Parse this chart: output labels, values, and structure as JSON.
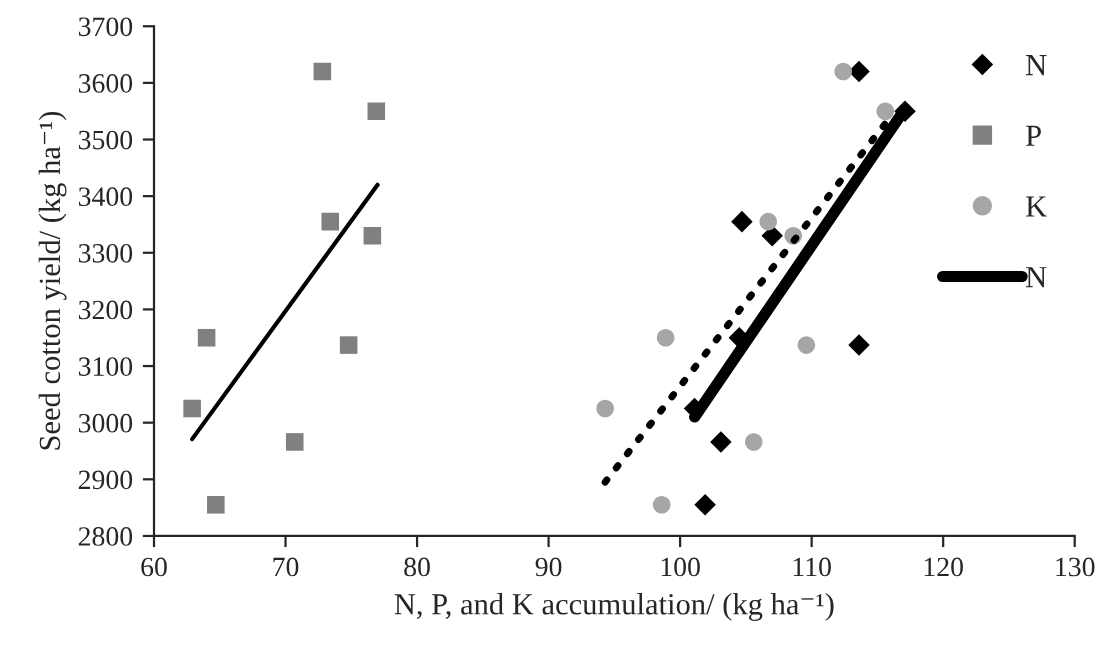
{
  "chart_data": {
    "type": "scatter",
    "xlabel": "N, P, and K accumulation/ (kg ha⁻¹)",
    "ylabel": "Seed cotton yield/ (kg ha⁻¹)",
    "xlim": [
      60,
      130
    ],
    "xticks": [
      60,
      70,
      80,
      90,
      100,
      110,
      120,
      130
    ],
    "ylim": [
      2800,
      3700
    ],
    "yticks": [
      2800,
      2900,
      3000,
      3100,
      3200,
      3300,
      3400,
      3500,
      3600,
      3700
    ],
    "grid": false,
    "legend": "top right",
    "series": [
      {
        "name": "N",
        "marker": "diamond",
        "color": "#000000",
        "x": [
          113.6,
          117.1,
          104.7,
          107.0,
          104.5,
          113.6,
          101.1,
          103.1,
          101.9
        ],
        "values": [
          3620,
          3550,
          3355,
          3330,
          3150,
          3137,
          3025,
          2966,
          2855
        ]
      },
      {
        "name": "P",
        "marker": "square",
        "color": "#808080",
        "x": [
          72.8,
          76.9,
          73.4,
          76.6,
          64.0,
          74.8,
          62.9,
          70.7,
          64.7
        ],
        "values": [
          3620,
          3550,
          3355,
          3330,
          3150,
          3137,
          3025,
          2966,
          2855
        ]
      },
      {
        "name": "K",
        "marker": "circle",
        "color": "#a6a6a6",
        "x": [
          112.4,
          115.6,
          106.7,
          108.6,
          98.9,
          109.6,
          94.3,
          105.6,
          98.6
        ],
        "values": [
          3620,
          3550,
          3355,
          3330,
          3150,
          3137,
          3025,
          2966,
          2855
        ]
      },
      {
        "type": "line",
        "line_style": "solid",
        "color": "#000000",
        "x": [
          62.9,
          77.0
        ],
        "values": [
          2971,
          3420
        ]
      },
      {
        "type": "line",
        "line_style": "dotted",
        "color": "#000000",
        "x": [
          94.3,
          116.0
        ],
        "values": [
          2895,
          3540
        ]
      },
      {
        "name": "N",
        "type": "line",
        "line_style": "solid",
        "color": "#000000",
        "x": [
          101.1,
          117.1
        ],
        "values": [
          3010,
          3554
        ]
      }
    ]
  }
}
